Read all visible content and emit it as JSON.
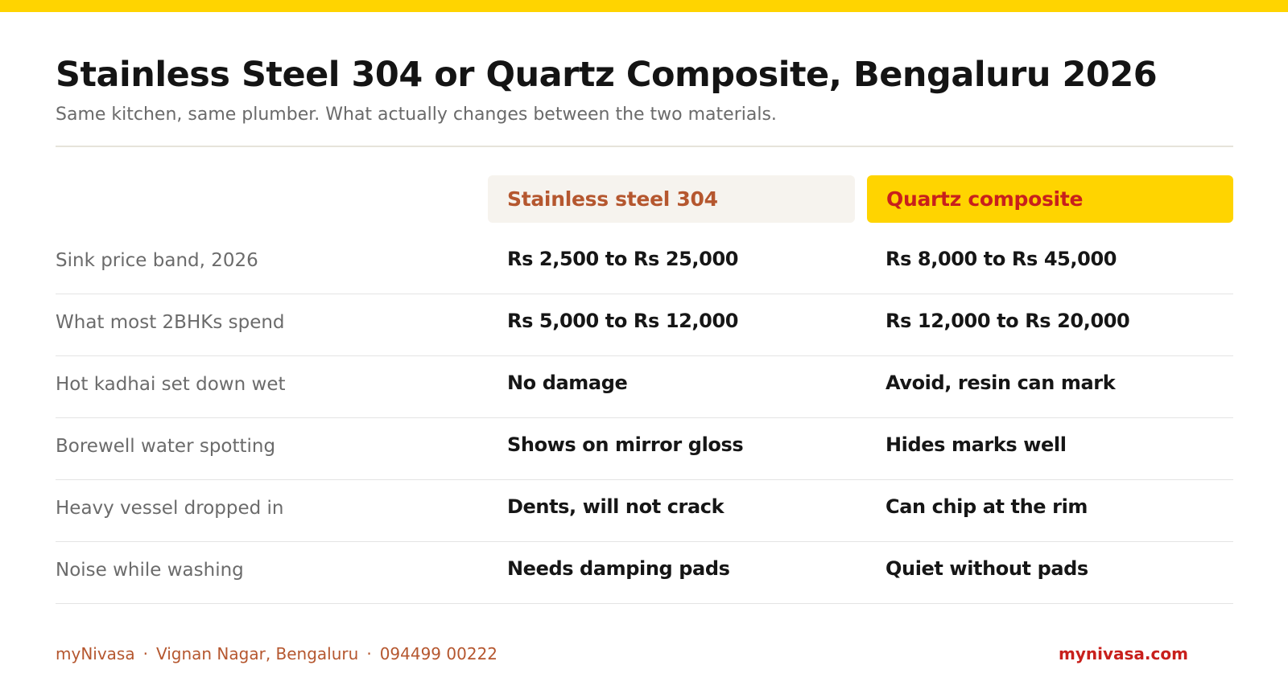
{
  "colors": {
    "accent_yellow": "#ffd400",
    "steel_heading": "#b5572f",
    "quartz_heading": "#c8201c",
    "header_bg_steel": "#f6f3ee"
  },
  "header": {
    "title": "Stainless Steel 304 or Quartz Composite, Bengaluru 2026",
    "subtitle": "Same kitchen, same plumber. What actually changes between the two materials."
  },
  "table": {
    "columns": {
      "steel": "Stainless steel 304",
      "quartz": "Quartz composite"
    },
    "rows": [
      {
        "label": "Sink price band, 2026",
        "steel": "Rs 2,500 to Rs 25,000",
        "quartz": "Rs 8,000 to Rs 45,000"
      },
      {
        "label": "What most 2BHKs spend",
        "steel": "Rs 5,000 to Rs 12,000",
        "quartz": "Rs 12,000 to Rs 20,000"
      },
      {
        "label": "Hot kadhai set down wet",
        "steel": "No damage",
        "quartz": "Avoid, resin can mark"
      },
      {
        "label": "Borewell water spotting",
        "steel": "Shows on mirror gloss",
        "quartz": "Hides marks well"
      },
      {
        "label": "Heavy vessel dropped in",
        "steel": "Dents, will not crack",
        "quartz": "Can chip at the rim"
      },
      {
        "label": "Noise while washing",
        "steel": "Needs damping pads",
        "quartz": "Quiet without pads"
      }
    ]
  },
  "footer": {
    "brand": "myNivasa",
    "separator": "·",
    "location": "Vignan Nagar, Bengaluru",
    "phone": "094499 00222",
    "website": "mynivasa.com"
  }
}
